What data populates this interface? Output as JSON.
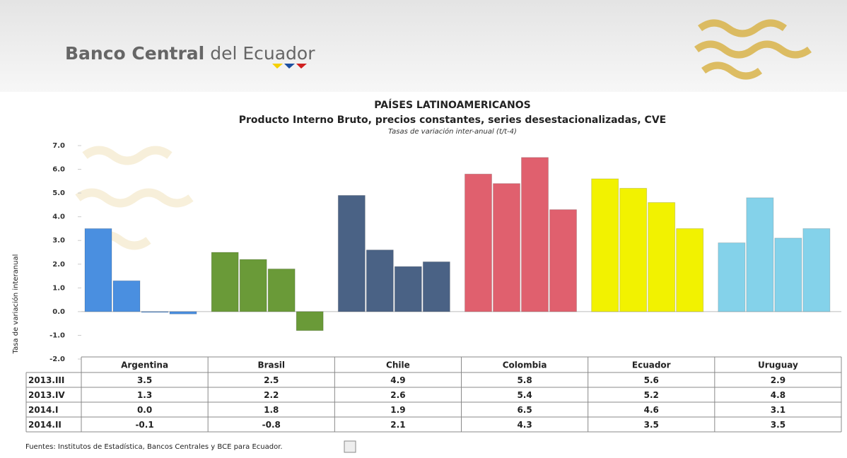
{
  "header": {
    "logo_bold": "Banco Central",
    "logo_rest": "del Ecuador"
  },
  "chart_data": {
    "type": "bar",
    "title": "PAÍSES LATINOAMERICANOS",
    "subtitle": "Producto Interno Bruto, precios constantes, series desestacionalizadas, CVE",
    "note": "Tasas de variación inter-anual (t/t-4)",
    "y_label": "Tasa de variación interanual",
    "categories": [
      "Argentina",
      "Brasil",
      "Chile",
      "Colombia",
      "Ecuador",
      "Uruguay"
    ],
    "colors": [
      "#4a8fe0",
      "#6a9a38",
      "#4a6285",
      "#e0606e",
      "#f2f200",
      "#84d2ea"
    ],
    "series": [
      {
        "name": "2013.III",
        "values": [
          3.5,
          2.5,
          4.9,
          5.8,
          5.6,
          2.9
        ],
        "value_labels": [
          "3.5",
          "2.5",
          "4.9",
          "5.8",
          "5.6",
          "2.9"
        ]
      },
      {
        "name": "2013.IV",
        "values": [
          1.3,
          2.2,
          2.6,
          5.4,
          5.2,
          4.8
        ],
        "value_labels": [
          "1.3",
          "2.2",
          "2.6",
          "5.4",
          "5.2",
          "4.8"
        ]
      },
      {
        "name": "2014.I",
        "values": [
          0.0,
          1.8,
          1.9,
          6.5,
          4.6,
          3.1
        ],
        "value_labels": [
          "0.0",
          "1.8",
          "1.9",
          "6.5",
          "4.6",
          "3.1"
        ]
      },
      {
        "name": "2014.II",
        "values": [
          -0.1,
          -0.8,
          2.1,
          4.3,
          3.5,
          3.5
        ],
        "value_labels": [
          "-0.1",
          "-0.8",
          "2.1",
          "4.3",
          "3.5",
          "3.5"
        ]
      }
    ],
    "ylim": [
      -2,
      7
    ],
    "yticks": [
      {
        "value": -2,
        "label": "-2.0"
      },
      {
        "value": -1,
        "label": "-1.0"
      },
      {
        "value": 0,
        "label": "0.0"
      },
      {
        "value": 1,
        "label": "1.0"
      },
      {
        "value": 2,
        "label": "2.0"
      },
      {
        "value": 3,
        "label": "3.0"
      },
      {
        "value": 4,
        "label": "4.0"
      },
      {
        "value": 5,
        "label": "5.0"
      },
      {
        "value": 6,
        "label": "6.0"
      },
      {
        "value": 7,
        "label": "7.0"
      }
    ],
    "source": "Fuentes: Institutos de Estadística, Bancos Centrales y BCE para Ecuador."
  }
}
